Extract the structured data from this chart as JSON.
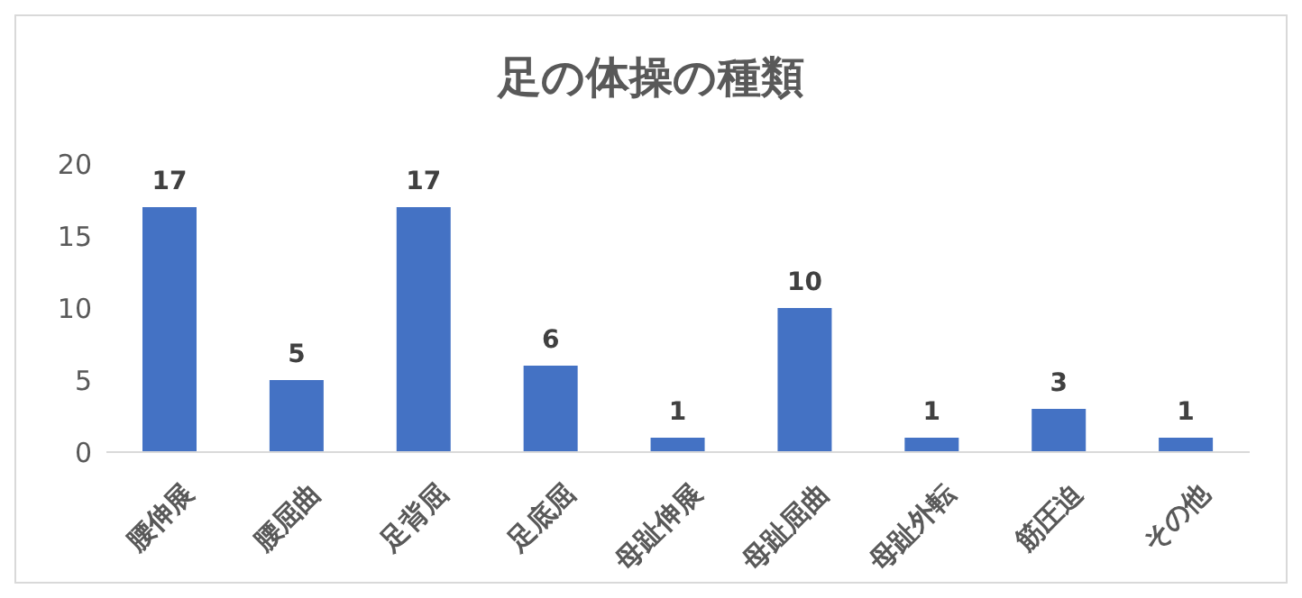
{
  "chart_data": {
    "type": "bar",
    "title": "足の体操の種類",
    "categories": [
      "腰伸展",
      "腰屈曲",
      "足背屈",
      "足底屈",
      "母趾伸展",
      "母趾屈曲",
      "母趾外転",
      "筋圧迫",
      "その他"
    ],
    "values": [
      17,
      5,
      17,
      6,
      1,
      10,
      1,
      3,
      1
    ],
    "color": "#4472c4",
    "ylim": [
      0,
      20
    ],
    "yticks": [
      0,
      5,
      10,
      15,
      20
    ],
    "grid": false,
    "data_labels": true
  }
}
